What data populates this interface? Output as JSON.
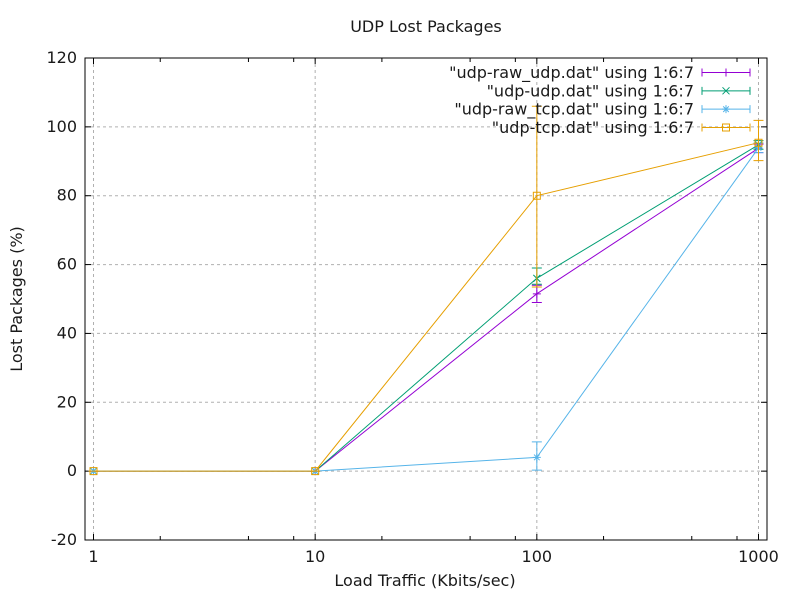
{
  "page": {
    "background": "#ffffff"
  },
  "chart_data": {
    "type": "line",
    "style": "xyerrorlines (gnuplot errorbars)",
    "title": "UDP Lost Packages",
    "xlabel": "Load Traffic (Kbits/sec)",
    "ylabel": "Lost Packages (%)",
    "x_scale": "log",
    "xlim_log": [
      -0.0384,
      3.0384
    ],
    "ylim": [
      -20,
      120
    ],
    "x_major_ticks": [
      1,
      10,
      100,
      1000
    ],
    "x_major_tick_labels": [
      "1",
      "10",
      "100",
      "1000"
    ],
    "x_minor_tick_multipliers": [
      2,
      5,
      8
    ],
    "y_ticks": [
      -20,
      0,
      20,
      40,
      60,
      80,
      100,
      120
    ],
    "grid": true,
    "legend_position": "top-right-inside",
    "colors": {
      "grid": "#b0b0b0",
      "border": "#000000",
      "text": "#1a1a1a",
      "background": "#ffffff"
    },
    "series": [
      {
        "name": "\"udp-raw_udp.dat\" using 1:6:7",
        "color": "#9400d3",
        "marker": "plus",
        "points": [
          {
            "x": 1,
            "y": 0,
            "ylo": 0,
            "yhi": 0
          },
          {
            "x": 10,
            "y": 0,
            "ylo": 0,
            "yhi": 0
          },
          {
            "x": 100,
            "y": 51.5,
            "ylo": 49,
            "yhi": 54
          },
          {
            "x": 1000,
            "y": 93.8,
            "ylo": 92.5,
            "yhi": 95
          }
        ]
      },
      {
        "name": "\"udp-udp.dat\" using 1:6:7",
        "color": "#009e73",
        "marker": "cross",
        "points": [
          {
            "x": 1,
            "y": 0,
            "ylo": 0,
            "yhi": 0
          },
          {
            "x": 10,
            "y": 0,
            "ylo": 0,
            "yhi": 0
          },
          {
            "x": 100,
            "y": 56,
            "ylo": 54.3,
            "yhi": 59
          },
          {
            "x": 1000,
            "y": 94.8,
            "ylo": 93.5,
            "yhi": 96
          }
        ]
      },
      {
        "name": "\"udp-raw_tcp.dat\" using 1:6:7",
        "color": "#56b4e9",
        "marker": "asterisk",
        "points": [
          {
            "x": 1,
            "y": 0,
            "ylo": 0,
            "yhi": 0
          },
          {
            "x": 10,
            "y": 0,
            "ylo": 0,
            "yhi": 0
          },
          {
            "x": 100,
            "y": 4,
            "ylo": 0.3,
            "yhi": 8.5
          },
          {
            "x": 1000,
            "y": 93.9,
            "ylo": 92.5,
            "yhi": 95.3
          }
        ]
      },
      {
        "name": "\"udp-tcp.dat\" using 1:6:7",
        "color": "#e69f00",
        "marker": "square",
        "points": [
          {
            "x": 1,
            "y": 0,
            "ylo": 0,
            "yhi": 0
          },
          {
            "x": 10,
            "y": 0,
            "ylo": 0,
            "yhi": 0
          },
          {
            "x": 100,
            "y": 80,
            "ylo": 53.5,
            "yhi": 106
          },
          {
            "x": 1000,
            "y": 95.4,
            "ylo": 90.2,
            "yhi": 101.9
          }
        ]
      }
    ]
  }
}
